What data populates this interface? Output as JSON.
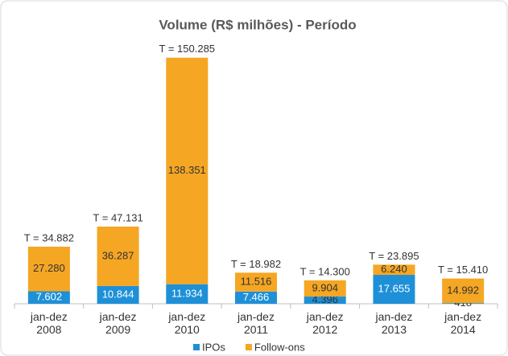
{
  "chart_data": {
    "type": "stacked_bar",
    "title": "Volume (R$ milhões) - Período",
    "categories": [
      "jan-dez 2008",
      "jan-dez 2009",
      "jan-dez 2010",
      "jan-dez 2011",
      "jan-dez 2012",
      "jan-dez 2013",
      "jan-dez 2014"
    ],
    "series": [
      {
        "name": "IPOs",
        "color": "#1e90d8",
        "values": [
          7602,
          10844,
          11934,
          7466,
          4396,
          17655,
          418
        ],
        "value_labels": [
          "7.602",
          "10.844",
          "11.934",
          "7.466",
          "4.396",
          "17.655",
          "418"
        ]
      },
      {
        "name": "Follow-ons",
        "color": "#f5a623",
        "values": [
          27280,
          36287,
          138351,
          11516,
          9904,
          6240,
          14992
        ],
        "value_labels": [
          "27.280",
          "36.287",
          "138.351",
          "11.516",
          "9.904",
          "6.240",
          "14.992"
        ]
      }
    ],
    "annotations": [
      "T = 34.882",
      "T = 47.131",
      "T = 150.285",
      "T = 18.982",
      "T = 14.300",
      "T = 23.895",
      "T = 15.410"
    ],
    "ylim": [
      0,
      160000
    ],
    "legend": "bottom"
  }
}
